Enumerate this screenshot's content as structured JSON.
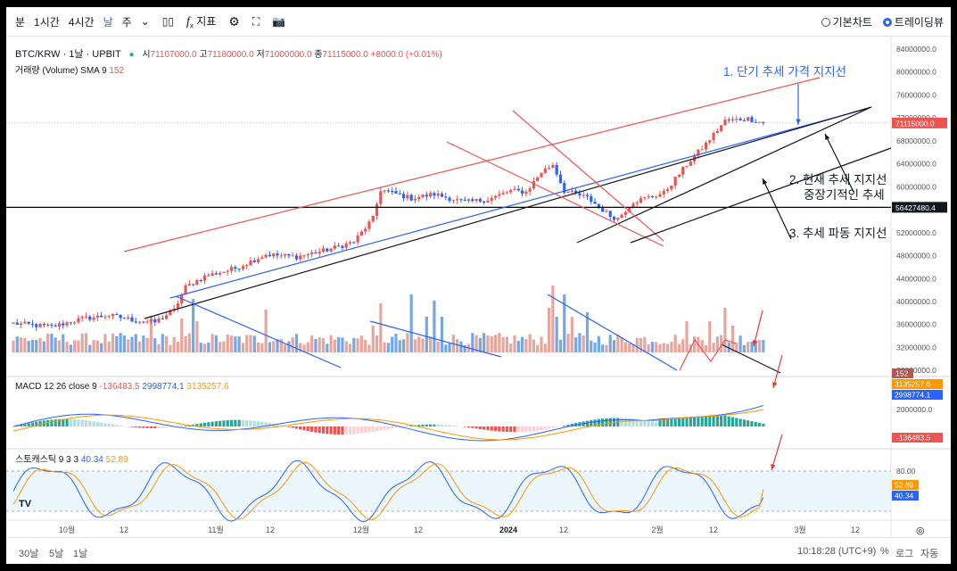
{
  "toolbar": {
    "intervals": [
      "분",
      "1시간",
      "4시간",
      "날",
      "주"
    ],
    "active_interval": "날",
    "indicators_label": "지표",
    "chart_style_basic": "기본차트",
    "chart_style_tv": "트레이딩뷰"
  },
  "legend": {
    "symbol": "BTC/KRW · 1날 · UPBIT",
    "open_label": "시",
    "open": "71107000.0",
    "high_label": "고",
    "high": "71180000.0",
    "low_label": "저",
    "low": "71000000.0",
    "close_label": "종",
    "close": "71115000.0",
    "change": "+8000.0 (+0.01%)",
    "volume_label": "거래량 (Volume) SMA 9",
    "volume_sma": "152",
    "macd_label": "MACD 12 26 close 9",
    "macd_hist": "-136483.5",
    "macd_line": "2998774.1",
    "macd_signal": "3135257.6",
    "stoch_label": "스토캐스틱 9 3 3",
    "stoch_k": "40.34",
    "stoch_d": "52.89"
  },
  "annotations": {
    "a1": "1. 단기 추세 가격 지지선",
    "a2_line1": "2. 현재 추세 지지선",
    "a2_line2": "중장기적인 추세",
    "a3": "3. 추세 파동 지지선"
  },
  "bottom": {
    "ranges": [
      "30날",
      "5날",
      "1날"
    ],
    "clock": "10:18:28 (UTC+9)",
    "pct": "%",
    "log": "로그",
    "auto": "자동"
  },
  "colors": {
    "up": "#ef5350",
    "down": "#2962ff",
    "up_vol": "#e8a59c",
    "down_vol": "#74a7e8",
    "macd_line": "#2962ff",
    "signal_line": "#ff9800",
    "hist_pos": "#26a69a",
    "hist_neg": "#ef5350"
  },
  "chart_data": [
    {
      "type": "candlestick",
      "title": "BTC/KRW · 1날 · UPBIT",
      "x_ticks": [
        "10월",
        "12",
        "11월",
        "12",
        "12월",
        "12",
        "2024",
        "12",
        "2월",
        "12",
        "3월",
        "12"
      ],
      "y_ticks": [
        84000000,
        80000000,
        76000000,
        72000000,
        68000000,
        64000000,
        60000000,
        56000000,
        52000000,
        48000000,
        44000000,
        40000000,
        36000000,
        32000000,
        28000000
      ],
      "ylim": [
        26500000,
        85000000
      ],
      "last_price": "71115000.0",
      "crosshair_price": "56427480.4",
      "close_path_keypoints": [
        [
          0,
          36200000
        ],
        [
          10,
          35600000
        ],
        [
          18,
          37000000
        ],
        [
          25,
          37600000
        ],
        [
          32,
          36700000
        ],
        [
          37,
          36400000
        ],
        [
          42,
          38500000
        ],
        [
          45,
          42500000
        ],
        [
          50,
          44400000
        ],
        [
          58,
          45800000
        ],
        [
          66,
          48200000
        ],
        [
          74,
          47800000
        ],
        [
          82,
          49000000
        ],
        [
          89,
          50400000
        ],
        [
          94,
          54500000
        ],
        [
          96,
          59500000
        ],
        [
          104,
          58000000
        ],
        [
          110,
          58700000
        ],
        [
          118,
          57300000
        ],
        [
          124,
          57800000
        ],
        [
          130,
          59300000
        ],
        [
          134,
          59100000
        ],
        [
          138,
          62600000
        ],
        [
          141,
          63900000
        ],
        [
          144,
          59300000
        ],
        [
          150,
          58100000
        ],
        [
          156,
          54900000
        ],
        [
          158,
          54500000
        ],
        [
          162,
          57400000
        ],
        [
          170,
          58900000
        ],
        [
          176,
          63900000
        ],
        [
          181,
          67500000
        ],
        [
          186,
          71500000
        ],
        [
          192,
          71900000
        ],
        [
          196,
          71115000
        ]
      ]
    },
    {
      "type": "bar",
      "title": "거래량 (Volume) SMA 9",
      "sma_last": 152
    },
    {
      "type": "line",
      "title": "MACD 12 26 close 9",
      "y_ticks": [
        2000000
      ],
      "series": [
        {
          "name": "MACD",
          "last": 2998774.1
        },
        {
          "name": "Signal",
          "last": 3135257.6
        },
        {
          "name": "Histogram",
          "last": -136483.5
        }
      ]
    },
    {
      "type": "line",
      "title": "스토캐스틱 9 3 3",
      "y_ticks": [
        80.0
      ],
      "bands": [
        20,
        80
      ],
      "series": [
        {
          "name": "%K",
          "last": 40.34
        },
        {
          "name": "%D",
          "last": 52.89
        }
      ]
    }
  ]
}
